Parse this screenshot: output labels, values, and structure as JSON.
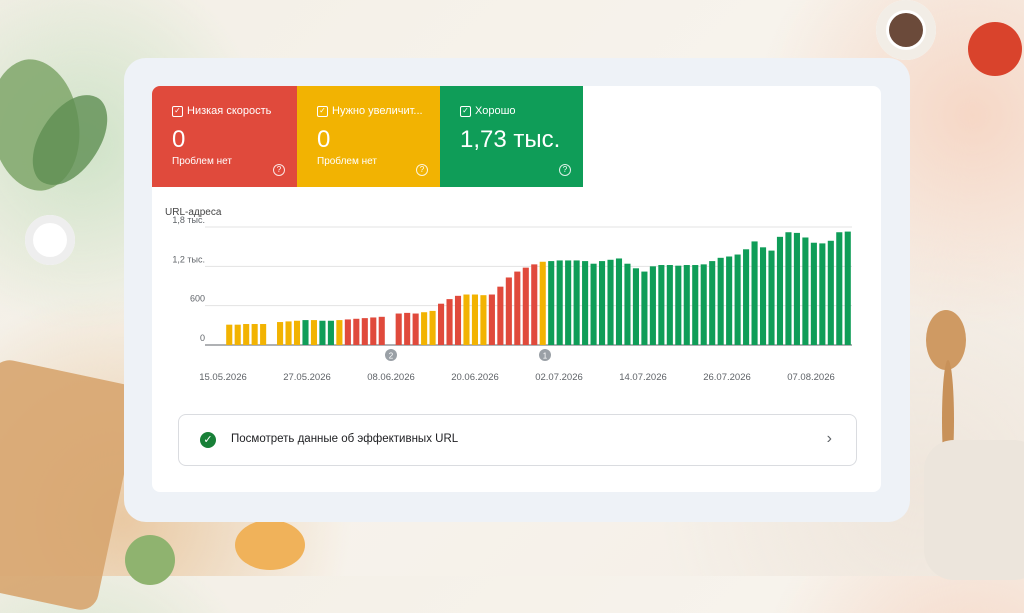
{
  "tiles": [
    {
      "label": "Низкая скорость",
      "value": "0",
      "sub": "Проблем нет",
      "color": "#e04a3c"
    },
    {
      "label": "Нужно увеличит...",
      "value": "0",
      "sub": "Проблем нет",
      "color": "#f2b302"
    },
    {
      "label": "Хорошо",
      "value": "1,73 тыс.",
      "sub": "",
      "color": "#0f9d58"
    }
  ],
  "checkbox_glyph": "✓",
  "help_glyph": "?",
  "chart_data": {
    "type": "bar",
    "ylabel": "URL-адреса",
    "ylim": [
      0,
      1800
    ],
    "yticks": [
      0,
      600,
      1200,
      1800
    ],
    "ytick_labels": [
      "0",
      "600",
      "1,2 тыс.",
      "1,8 тыс."
    ],
    "xtick_labels": [
      "15.05.2026",
      "27.05.2026",
      "08.06.2026",
      "20.06.2026",
      "02.07.2026",
      "14.07.2026",
      "26.07.2026",
      "07.08.2026"
    ],
    "annotations": [
      "2",
      "1"
    ],
    "colors": {
      "slow": "#e04a3c",
      "improve": "#f2b302",
      "good": "#0f9d58"
    },
    "bars": [
      {
        "v": 310,
        "c": "improve"
      },
      {
        "v": 310,
        "c": "improve"
      },
      {
        "v": 320,
        "c": "improve"
      },
      {
        "v": 320,
        "c": "improve"
      },
      {
        "v": 320,
        "c": "improve"
      },
      {
        "v": null,
        "c": "improve"
      },
      {
        "v": 350,
        "c": "improve"
      },
      {
        "v": 360,
        "c": "improve"
      },
      {
        "v": 370,
        "c": "improve"
      },
      {
        "v": 380,
        "c": "good"
      },
      {
        "v": 380,
        "c": "improve"
      },
      {
        "v": 370,
        "c": "good"
      },
      {
        "v": 370,
        "c": "good"
      },
      {
        "v": 380,
        "c": "improve"
      },
      {
        "v": 390,
        "c": "slow"
      },
      {
        "v": 400,
        "c": "slow"
      },
      {
        "v": 410,
        "c": "slow"
      },
      {
        "v": 420,
        "c": "slow"
      },
      {
        "v": 430,
        "c": "slow"
      },
      {
        "v": null,
        "c": "slow"
      },
      {
        "v": 480,
        "c": "slow"
      },
      {
        "v": 490,
        "c": "slow"
      },
      {
        "v": 480,
        "c": "slow"
      },
      {
        "v": 500,
        "c": "improve"
      },
      {
        "v": 520,
        "c": "improve"
      },
      {
        "v": 630,
        "c": "slow"
      },
      {
        "v": 700,
        "c": "slow"
      },
      {
        "v": 750,
        "c": "slow"
      },
      {
        "v": 770,
        "c": "improve"
      },
      {
        "v": 770,
        "c": "improve"
      },
      {
        "v": 760,
        "c": "improve"
      },
      {
        "v": 770,
        "c": "slow"
      },
      {
        "v": 890,
        "c": "slow"
      },
      {
        "v": 1030,
        "c": "slow"
      },
      {
        "v": 1120,
        "c": "slow"
      },
      {
        "v": 1180,
        "c": "slow"
      },
      {
        "v": 1230,
        "c": "slow"
      },
      {
        "v": 1270,
        "c": "improve"
      },
      {
        "v": 1280,
        "c": "good"
      },
      {
        "v": 1290,
        "c": "good"
      },
      {
        "v": 1290,
        "c": "good"
      },
      {
        "v": 1290,
        "c": "good"
      },
      {
        "v": 1280,
        "c": "good"
      },
      {
        "v": 1240,
        "c": "good"
      },
      {
        "v": 1280,
        "c": "good"
      },
      {
        "v": 1300,
        "c": "good"
      },
      {
        "v": 1320,
        "c": "good"
      },
      {
        "v": 1240,
        "c": "good"
      },
      {
        "v": 1170,
        "c": "good"
      },
      {
        "v": 1120,
        "c": "good"
      },
      {
        "v": 1200,
        "c": "good"
      },
      {
        "v": 1220,
        "c": "good"
      },
      {
        "v": 1220,
        "c": "good"
      },
      {
        "v": 1210,
        "c": "good"
      },
      {
        "v": 1220,
        "c": "good"
      },
      {
        "v": 1220,
        "c": "good"
      },
      {
        "v": 1230,
        "c": "good"
      },
      {
        "v": 1280,
        "c": "good"
      },
      {
        "v": 1330,
        "c": "good"
      },
      {
        "v": 1350,
        "c": "good"
      },
      {
        "v": 1380,
        "c": "good"
      },
      {
        "v": 1460,
        "c": "good"
      },
      {
        "v": 1580,
        "c": "good"
      },
      {
        "v": 1490,
        "c": "good"
      },
      {
        "v": 1440,
        "c": "good"
      },
      {
        "v": 1650,
        "c": "good"
      },
      {
        "v": 1720,
        "c": "good"
      },
      {
        "v": 1710,
        "c": "good"
      },
      {
        "v": 1640,
        "c": "good"
      },
      {
        "v": 1560,
        "c": "good"
      },
      {
        "v": 1550,
        "c": "good"
      },
      {
        "v": 1590,
        "c": "good"
      },
      {
        "v": 1720,
        "c": "good"
      },
      {
        "v": 1730,
        "c": "good"
      }
    ]
  },
  "link": {
    "text": "Посмотреть данные об эффективных URL",
    "chevron": "›",
    "icon": "check-circle-icon",
    "icon_glyph": "✓"
  }
}
